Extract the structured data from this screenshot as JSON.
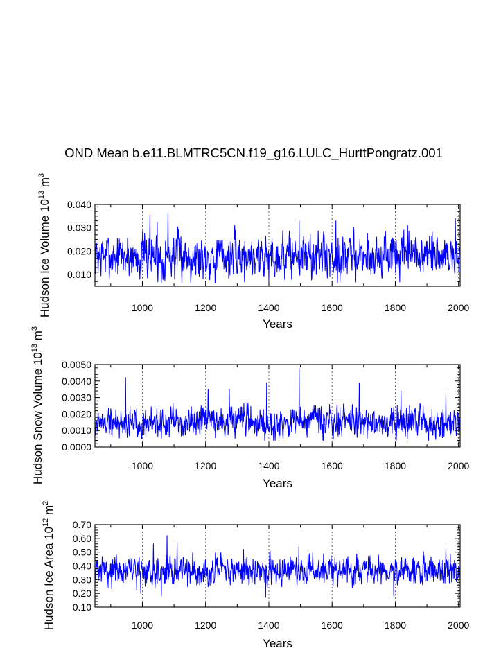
{
  "title": "OND Mean b.e11.BLMTRC5CN.f19_g16.LULC_HurttPongratz.001",
  "chart_data": [
    {
      "type": "line",
      "ylabel": "Hudson Ice Volume 10^13 m^3",
      "ylabel_base": "Hudson Ice Volume 10",
      "ylabel_exp1": "13",
      "ylabel_mid": " m",
      "ylabel_exp2": "3",
      "xlabel": "Years",
      "xlim": [
        850,
        2005
      ],
      "ylim": [
        0.005,
        0.04
      ],
      "xticks": [
        1000,
        1200,
        1400,
        1600,
        1800,
        2000
      ],
      "xtick_labels": [
        "1000",
        "1200",
        "1400",
        "1600",
        "1800",
        "2000"
      ],
      "yticks": [
        0.01,
        0.02,
        0.03,
        0.04
      ],
      "ytick_labels": [
        "0.010",
        "0.020",
        "0.030",
        "0.040"
      ],
      "grid": "x-dashed",
      "series_color": "#0000ff",
      "series": [
        {
          "x_start": 850,
          "x_end": 2005,
          "mean": 0.018,
          "amp": 0.0055,
          "min": 0.0065,
          "max": 0.036,
          "seed": 7,
          "peaks": [
            [
              1024,
              0.0355
            ],
            [
              1081,
              0.036
            ],
            [
              1047,
              0.0325
            ],
            [
              1496,
              0.033
            ],
            [
              1612,
              0.033
            ],
            [
              1990,
              0.034
            ],
            [
              1060,
              0.0065
            ],
            [
              1400,
              0.0075
            ],
            [
              1625,
              0.0068
            ],
            [
              1180,
              0.0093
            ]
          ]
        }
      ]
    },
    {
      "type": "line",
      "ylabel": "Hudson Snow Volume 10^13 m^3",
      "ylabel_base": "Hudson Snow Volume 10",
      "ylabel_exp1": "13",
      "ylabel_mid": " m",
      "ylabel_exp2": "3",
      "xlabel": "Years",
      "xlim": [
        850,
        2005
      ],
      "ylim": [
        0.0,
        0.005
      ],
      "xticks": [
        1000,
        1200,
        1400,
        1600,
        1800,
        2000
      ],
      "xtick_labels": [
        "1000",
        "1200",
        "1400",
        "1600",
        "1800",
        "2000"
      ],
      "yticks": [
        0.0,
        0.001,
        0.002,
        0.003,
        0.004,
        0.005
      ],
      "ytick_labels": [
        "0.0000",
        "0.0010",
        "0.0020",
        "0.0030",
        "0.0040",
        "0.0050"
      ],
      "grid": "x-dashed",
      "series_color": "#0000ff",
      "series": [
        {
          "x_start": 850,
          "x_end": 2005,
          "mean": 0.0015,
          "amp": 0.00055,
          "min": 0.0004,
          "max": 0.0048,
          "seed": 19,
          "peaks": [
            [
              947,
              0.0042
            ],
            [
              1496,
              0.0048
            ],
            [
              1393,
              0.0039
            ],
            [
              1686,
              0.0039
            ],
            [
              1275,
              0.0035
            ],
            [
              1208,
              0.0035
            ],
            [
              1818,
              0.0034
            ],
            [
              1960,
              0.0033
            ],
            [
              1060,
              0.0005
            ]
          ]
        }
      ]
    },
    {
      "type": "line",
      "ylabel": "Hudson Ice Area 10^12 m^2",
      "ylabel_base": "Hudson Ice Area 10",
      "ylabel_exp1": "12",
      "ylabel_mid": " m",
      "ylabel_exp2": "2",
      "xlabel": "Years",
      "xlim": [
        850,
        2005
      ],
      "ylim": [
        0.1,
        0.7
      ],
      "xticks": [
        1000,
        1200,
        1400,
        1600,
        1800,
        2000
      ],
      "xtick_labels": [
        "1000",
        "1200",
        "1400",
        "1600",
        "1800",
        "2000"
      ],
      "yticks": [
        0.1,
        0.2,
        0.3,
        0.4,
        0.5,
        0.6,
        0.7
      ],
      "ytick_labels": [
        "0.10",
        "0.20",
        "0.30",
        "0.40",
        "0.50",
        "0.60",
        "0.70"
      ],
      "grid": "x-dashed",
      "series_color": "#0000ff",
      "series": [
        {
          "x_start": 850,
          "x_end": 2005,
          "mean": 0.365,
          "amp": 0.06,
          "min": 0.17,
          "max": 0.62,
          "seed": 31,
          "peaks": [
            [
              1078,
              0.62
            ],
            [
              1035,
              0.56
            ],
            [
              1110,
              0.57
            ],
            [
              1320,
              0.52
            ],
            [
              1495,
              0.54
            ],
            [
              1960,
              0.53
            ],
            [
              1060,
              0.18
            ],
            [
              1390,
              0.17
            ],
            [
              1795,
              0.18
            ],
            [
              995,
              0.2
            ]
          ]
        }
      ]
    }
  ]
}
